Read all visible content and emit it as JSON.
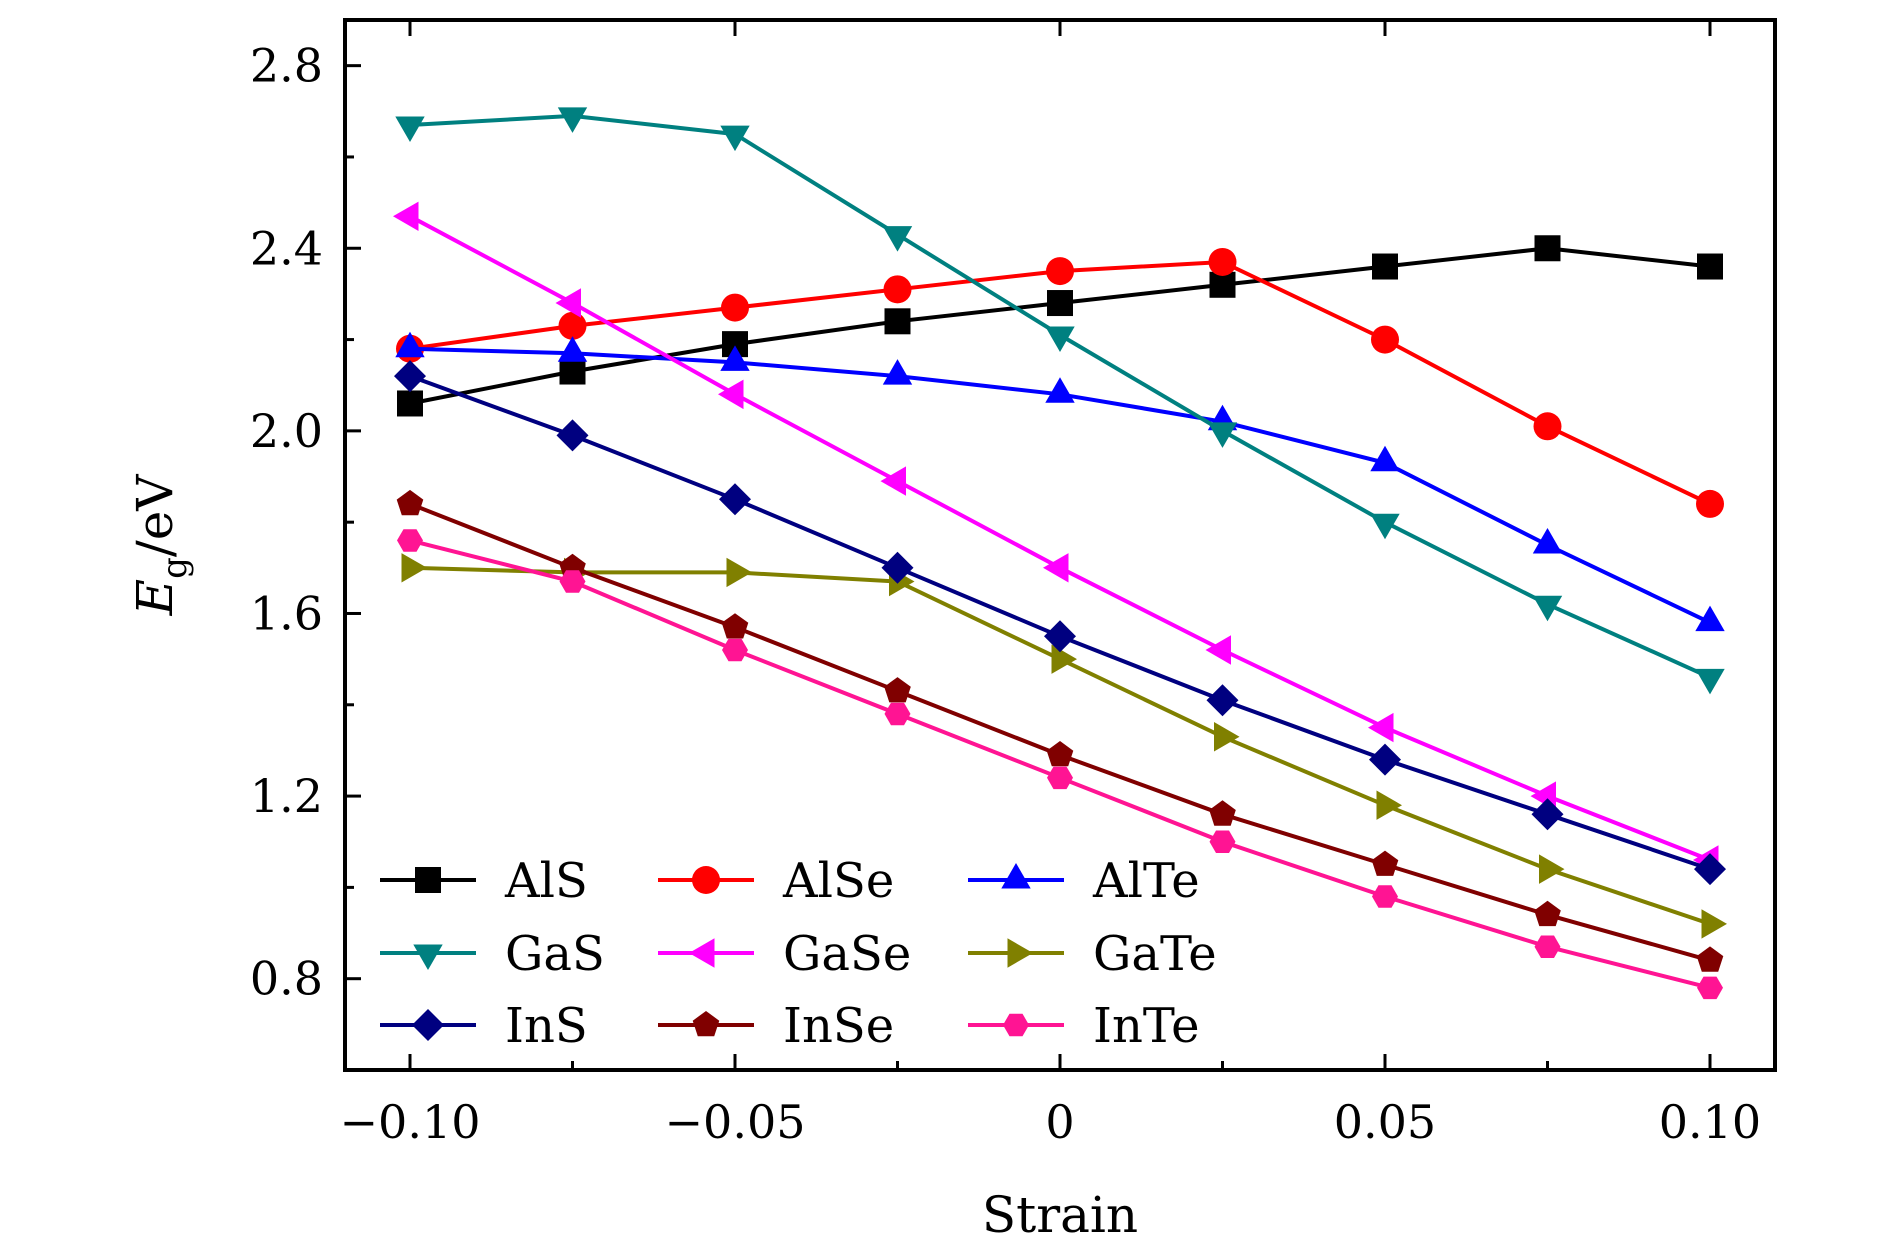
{
  "chart_data": {
    "type": "line",
    "title": "",
    "xlabel": "Strain",
    "ylabel": "E_g/eV",
    "ylabel_parts": {
      "symbol": "E",
      "subscript": "g",
      "unit": "/eV"
    },
    "xlim": [
      -0.11,
      0.11
    ],
    "ylim": [
      0.6,
      2.9
    ],
    "grid": false,
    "legend_position": "bottom-left, 3 columns",
    "x": [
      -0.1,
      -0.075,
      -0.05,
      -0.025,
      0,
      0.025,
      0.05,
      0.075,
      0.1
    ],
    "x_ticks": [
      -0.1,
      -0.05,
      0,
      0.05,
      0.1
    ],
    "x_tick_labels": [
      "−0.10",
      "−0.05",
      "0",
      "0.05",
      "0.10"
    ],
    "y_ticks": [
      0.8,
      1.2,
      1.6,
      2.0,
      2.4,
      2.8
    ],
    "y_tick_labels": [
      "0.8",
      "1.2",
      "1.6",
      "2.0",
      "2.4",
      "2.8"
    ],
    "series": [
      {
        "name": "AlS",
        "color": "#000000",
        "marker": "square",
        "values": [
          2.06,
          2.13,
          2.19,
          2.24,
          2.28,
          2.32,
          2.36,
          2.4,
          2.36
        ]
      },
      {
        "name": "AlSe",
        "color": "#ff0000",
        "marker": "circle",
        "values": [
          2.18,
          2.23,
          2.27,
          2.31,
          2.35,
          2.37,
          2.2,
          2.01,
          1.84
        ]
      },
      {
        "name": "AlTe",
        "color": "#0000ff",
        "marker": "triangle-up",
        "values": [
          2.18,
          2.17,
          2.15,
          2.12,
          2.08,
          2.02,
          1.93,
          1.75,
          1.58
        ]
      },
      {
        "name": "GaS",
        "color": "#008080",
        "marker": "triangle-down",
        "values": [
          2.67,
          2.69,
          2.65,
          2.43,
          2.21,
          2.0,
          1.8,
          1.62,
          1.46
        ]
      },
      {
        "name": "GaSe",
        "color": "#ff00ff",
        "marker": "triangle-left",
        "values": [
          2.47,
          2.28,
          2.08,
          1.89,
          1.7,
          1.52,
          1.35,
          1.2,
          1.06
        ]
      },
      {
        "name": "GaTe",
        "color": "#808000",
        "marker": "triangle-right",
        "values": [
          1.7,
          1.69,
          1.69,
          1.67,
          1.5,
          1.33,
          1.18,
          1.04,
          0.92
        ]
      },
      {
        "name": "InS",
        "color": "#000080",
        "marker": "diamond",
        "values": [
          2.12,
          1.99,
          1.85,
          1.7,
          1.55,
          1.41,
          1.28,
          1.16,
          1.04
        ]
      },
      {
        "name": "InSe",
        "color": "#800000",
        "marker": "pentagon",
        "values": [
          1.84,
          1.7,
          1.57,
          1.43,
          1.29,
          1.16,
          1.05,
          0.94,
          0.84
        ]
      },
      {
        "name": "InTe",
        "color": "#ff1493",
        "marker": "hexagon",
        "values": [
          1.76,
          1.67,
          1.52,
          1.38,
          1.24,
          1.1,
          0.98,
          0.87,
          0.78
        ]
      }
    ]
  }
}
